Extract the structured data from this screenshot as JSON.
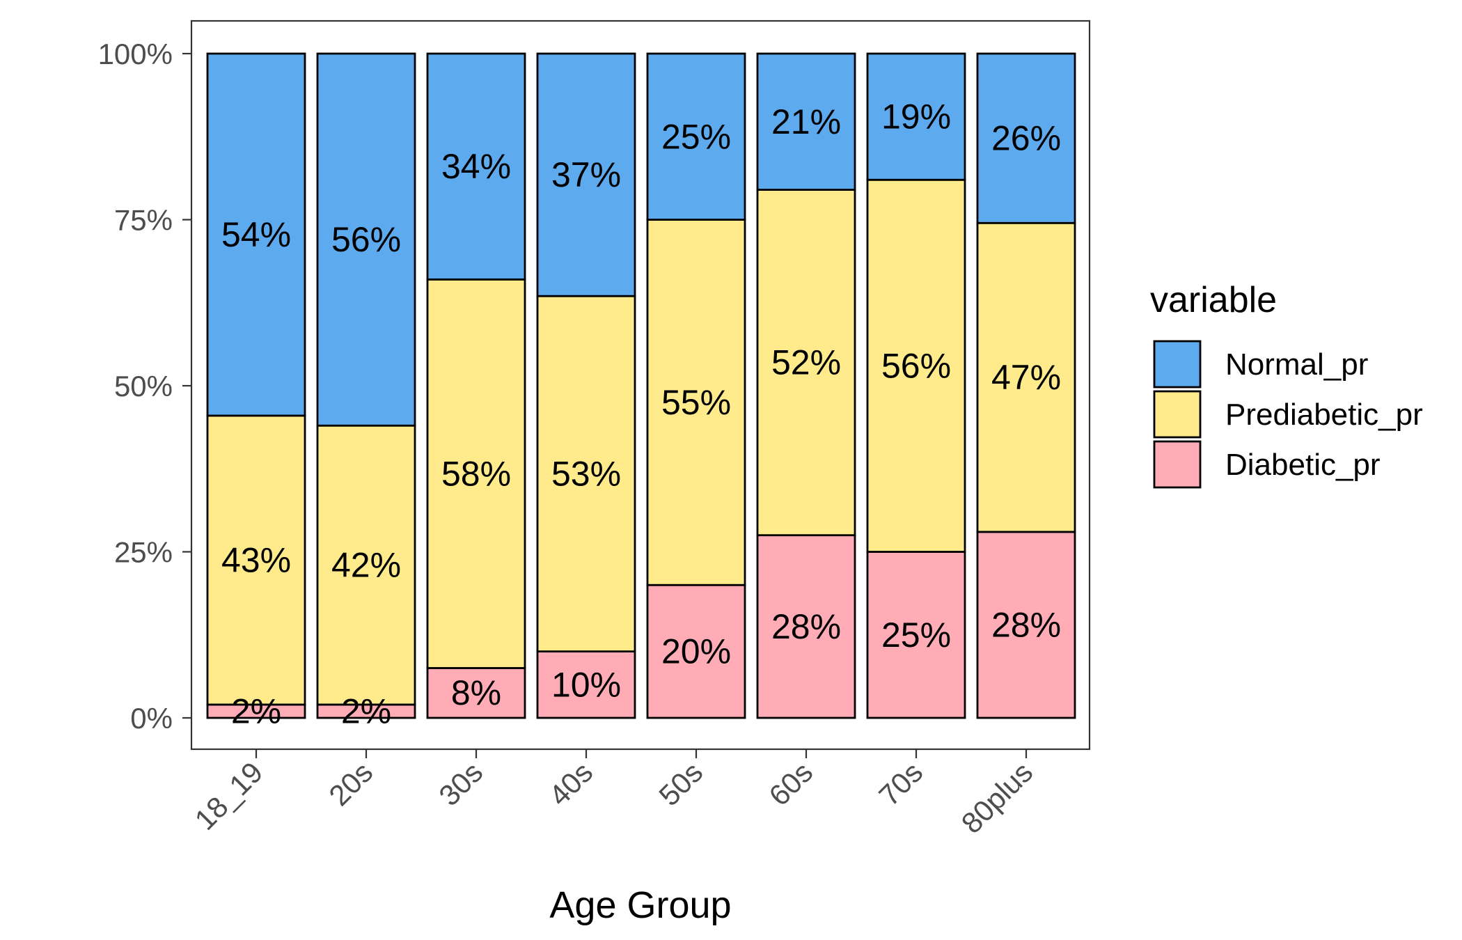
{
  "chart_data": {
    "type": "bar",
    "stacked": true,
    "percent_stacked": true,
    "title": "",
    "xlabel": "Age Group",
    "ylabel": "",
    "ylim": [
      0,
      1
    ],
    "yticks": [
      "0%",
      "25%",
      "50%",
      "75%",
      "100%"
    ],
    "categories": [
      "18_19",
      "20s",
      "30s",
      "40s",
      "50s",
      "60s",
      "70s",
      "80plus"
    ],
    "series": [
      {
        "name": "Diabetic_pr",
        "color": "#FFACB7",
        "values": [
          0.02,
          0.02,
          0.075,
          0.1,
          0.2,
          0.275,
          0.25,
          0.28
        ],
        "labels": [
          "2%",
          "2%",
          "8%",
          "10%",
          "20%",
          "28%",
          "25%",
          "28%"
        ]
      },
      {
        "name": "Prediabetic_pr",
        "color": "#FFEB8C",
        "values": [
          0.435,
          0.42,
          0.585,
          0.535,
          0.55,
          0.52,
          0.56,
          0.465
        ],
        "labels": [
          "43%",
          "42%",
          "58%",
          "53%",
          "55%",
          "52%",
          "56%",
          "47%"
        ]
      },
      {
        "name": "Normal_pr",
        "color": "#5DAAEE",
        "values": [
          0.545,
          0.56,
          0.34,
          0.365,
          0.25,
          0.205,
          0.19,
          0.255
        ],
        "labels": [
          "54%",
          "56%",
          "34%",
          "37%",
          "25%",
          "21%",
          "19%",
          "26%"
        ]
      }
    ],
    "legend": {
      "title": "variable",
      "position": "right",
      "items": [
        "Normal_pr",
        "Prediabetic_pr",
        "Diabetic_pr"
      ]
    },
    "grid": false
  }
}
